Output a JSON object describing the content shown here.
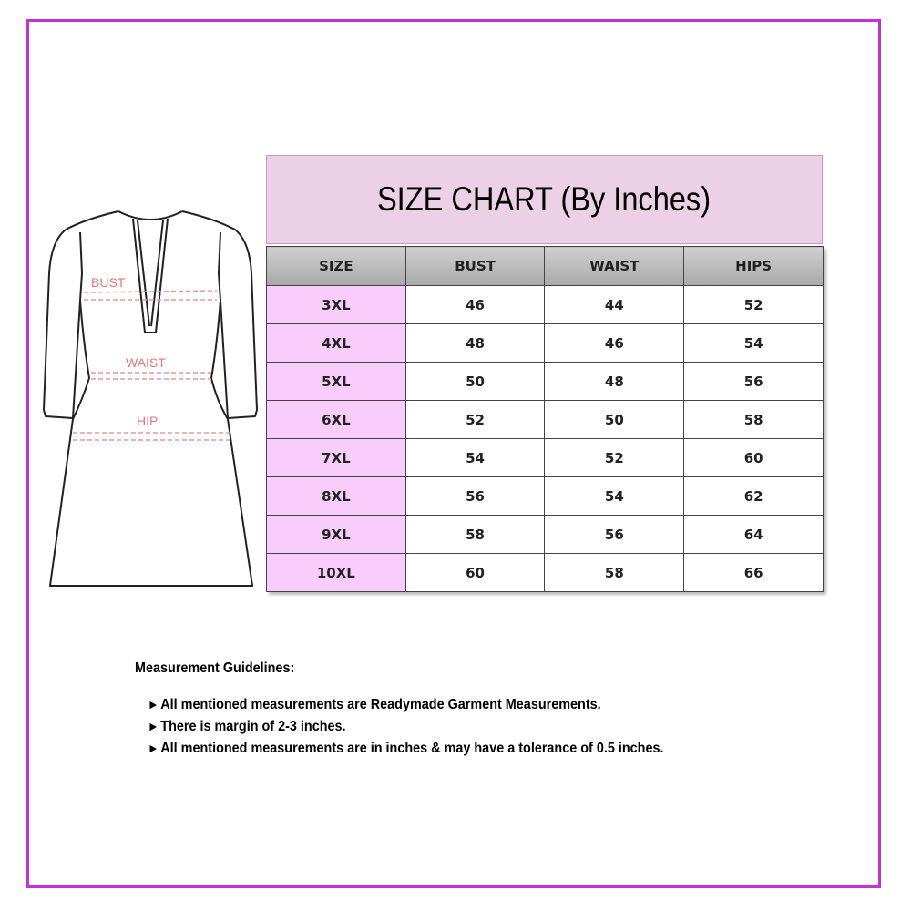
{
  "title": "SIZE CHART (By Inches)",
  "diagram_labels": {
    "bust": "BUST",
    "waist": "WAIST",
    "hip": "HIP"
  },
  "table": {
    "headers": [
      "SIZE",
      "BUST",
      "WAIST",
      "HIPS"
    ],
    "rows": [
      [
        "3XL",
        "46",
        "44",
        "52"
      ],
      [
        "4XL",
        "48",
        "46",
        "54"
      ],
      [
        "5XL",
        "50",
        "48",
        "56"
      ],
      [
        "6XL",
        "52",
        "50",
        "58"
      ],
      [
        "7XL",
        "54",
        "52",
        "60"
      ],
      [
        "8XL",
        "56",
        "54",
        "62"
      ],
      [
        "9XL",
        "58",
        "56",
        "64"
      ],
      [
        "10XL",
        "60",
        "58",
        "66"
      ]
    ]
  },
  "guidelines": {
    "heading": "Measurement Guidelines:",
    "bullet_icon": "right-pointer-arrow",
    "items": [
      "All mentioned measurements are Readymade Garment Measurements.",
      "There is margin of 2-3 inches.",
      "All mentioned measurements are in inches & may have a tolerance of 0.5 inches."
    ]
  },
  "colors": {
    "frame": "#c233d6",
    "title_bg": "#ecd0e6",
    "size_cell_bg": "#f8ccfb",
    "header_bg": "#b9b9b9",
    "label": "#e07a7a"
  }
}
